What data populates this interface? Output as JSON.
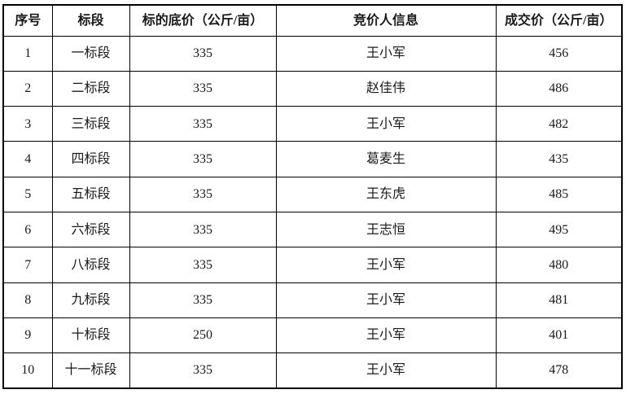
{
  "table": {
    "name": "bidding-results",
    "background": "#ffffff",
    "border_color": "#000000",
    "text_color": "#1a1a1a",
    "columns": [
      "序号",
      "标段",
      "标的底价（公斤/亩）",
      "竞价人信息",
      "成交价（公斤/亩）"
    ],
    "rows": [
      [
        "1",
        "一标段",
        "335",
        "王小军",
        "456"
      ],
      [
        "2",
        "二标段",
        "335",
        "赵佳伟",
        "486"
      ],
      [
        "3",
        "三标段",
        "335",
        "王小军",
        "482"
      ],
      [
        "4",
        "四标段",
        "335",
        "葛麦生",
        "435"
      ],
      [
        "5",
        "五标段",
        "335",
        "王东虎",
        "485"
      ],
      [
        "6",
        "六标段",
        "335",
        "王志恒",
        "495"
      ],
      [
        "7",
        "八标段",
        "335",
        "王小军",
        "480"
      ],
      [
        "8",
        "九标段",
        "335",
        "王小军",
        "481"
      ],
      [
        "9",
        "十标段",
        "250",
        "王小军",
        "401"
      ],
      [
        "10",
        "十一标段",
        "335",
        "王小军",
        "478"
      ]
    ]
  }
}
